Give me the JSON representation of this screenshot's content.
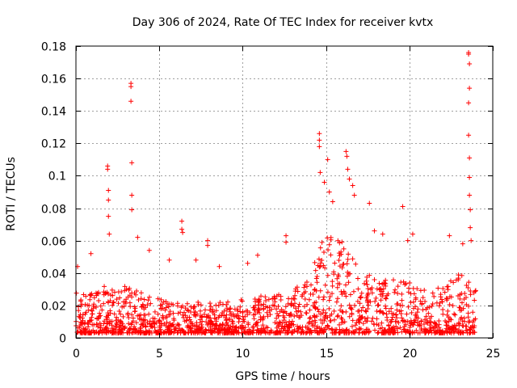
{
  "chart_data": {
    "type": "scatter",
    "title": "Day 306 of 2024, Rate Of TEC Index for receiver kvtx",
    "xlabel": "GPS time / hours",
    "ylabel": "ROTI / TECUs",
    "xlim": [
      0,
      25
    ],
    "ylim": [
      0,
      0.18
    ],
    "xticks": [
      "0",
      "5",
      "10",
      "15",
      "20",
      "25"
    ],
    "xtick_values": [
      0,
      5,
      10,
      15,
      20,
      25
    ],
    "yticks": [
      "0",
      "0.02",
      "0.04",
      "0.06",
      "0.08",
      "0.1",
      "0.12",
      "0.14",
      "0.16",
      "0.18"
    ],
    "ytick_values": [
      0,
      0.02,
      0.04,
      0.06,
      0.08,
      0.1,
      0.12,
      0.14,
      0.16,
      0.18
    ],
    "grid": true,
    "marker": "+",
    "color": "#ff0000",
    "series": [
      {
        "name": "ROTI",
        "baseline_profile": {
          "x": [
            0,
            1,
            2,
            3,
            4,
            5,
            6,
            7,
            8,
            9,
            10,
            11,
            12,
            13,
            14,
            14.5,
            15,
            15.5,
            16,
            16.5,
            17,
            18,
            19,
            20,
            21,
            22,
            23,
            24
          ],
          "y_typical_max": [
            0.03,
            0.028,
            0.035,
            0.032,
            0.028,
            0.024,
            0.022,
            0.022,
            0.022,
            0.022,
            0.024,
            0.026,
            0.026,
            0.03,
            0.036,
            0.06,
            0.065,
            0.06,
            0.062,
            0.055,
            0.04,
            0.038,
            0.036,
            0.034,
            0.03,
            0.035,
            0.04,
            0.03
          ],
          "y_min": 0.003
        },
        "notable_points": [
          {
            "x": 0.1,
            "y": 0.044
          },
          {
            "x": 0.9,
            "y": 0.052
          },
          {
            "x": 1.9,
            "y": 0.106
          },
          {
            "x": 1.9,
            "y": 0.104
          },
          {
            "x": 1.95,
            "y": 0.091
          },
          {
            "x": 1.95,
            "y": 0.085
          },
          {
            "x": 1.95,
            "y": 0.075
          },
          {
            "x": 2.0,
            "y": 0.064
          },
          {
            "x": 3.3,
            "y": 0.157
          },
          {
            "x": 3.3,
            "y": 0.155
          },
          {
            "x": 3.3,
            "y": 0.146
          },
          {
            "x": 3.35,
            "y": 0.108
          },
          {
            "x": 3.35,
            "y": 0.088
          },
          {
            "x": 3.35,
            "y": 0.079
          },
          {
            "x": 3.7,
            "y": 0.062
          },
          {
            "x": 4.4,
            "y": 0.054
          },
          {
            "x": 5.6,
            "y": 0.048
          },
          {
            "x": 6.35,
            "y": 0.072
          },
          {
            "x": 6.35,
            "y": 0.067
          },
          {
            "x": 6.4,
            "y": 0.065
          },
          {
            "x": 7.2,
            "y": 0.048
          },
          {
            "x": 7.9,
            "y": 0.06
          },
          {
            "x": 7.9,
            "y": 0.057
          },
          {
            "x": 8.6,
            "y": 0.044
          },
          {
            "x": 10.3,
            "y": 0.046
          },
          {
            "x": 10.9,
            "y": 0.051
          },
          {
            "x": 12.6,
            "y": 0.063
          },
          {
            "x": 12.6,
            "y": 0.059
          },
          {
            "x": 14.6,
            "y": 0.126
          },
          {
            "x": 14.6,
            "y": 0.122
          },
          {
            "x": 14.6,
            "y": 0.118
          },
          {
            "x": 14.65,
            "y": 0.102
          },
          {
            "x": 14.9,
            "y": 0.096
          },
          {
            "x": 15.1,
            "y": 0.11
          },
          {
            "x": 15.2,
            "y": 0.09
          },
          {
            "x": 15.4,
            "y": 0.084
          },
          {
            "x": 16.2,
            "y": 0.115
          },
          {
            "x": 16.25,
            "y": 0.112
          },
          {
            "x": 16.3,
            "y": 0.104
          },
          {
            "x": 16.4,
            "y": 0.098
          },
          {
            "x": 16.6,
            "y": 0.094
          },
          {
            "x": 16.7,
            "y": 0.088
          },
          {
            "x": 17.6,
            "y": 0.083
          },
          {
            "x": 17.9,
            "y": 0.066
          },
          {
            "x": 18.4,
            "y": 0.064
          },
          {
            "x": 19.6,
            "y": 0.081
          },
          {
            "x": 19.9,
            "y": 0.06
          },
          {
            "x": 20.2,
            "y": 0.064
          },
          {
            "x": 22.4,
            "y": 0.063
          },
          {
            "x": 23.2,
            "y": 0.058
          },
          {
            "x": 23.55,
            "y": 0.176
          },
          {
            "x": 23.55,
            "y": 0.175
          },
          {
            "x": 23.6,
            "y": 0.169
          },
          {
            "x": 23.6,
            "y": 0.154
          },
          {
            "x": 23.55,
            "y": 0.145
          },
          {
            "x": 23.55,
            "y": 0.125
          },
          {
            "x": 23.6,
            "y": 0.111
          },
          {
            "x": 23.6,
            "y": 0.099
          },
          {
            "x": 23.6,
            "y": 0.088
          },
          {
            "x": 23.65,
            "y": 0.079
          },
          {
            "x": 23.65,
            "y": 0.068
          },
          {
            "x": 23.7,
            "y": 0.06
          }
        ]
      }
    ]
  }
}
